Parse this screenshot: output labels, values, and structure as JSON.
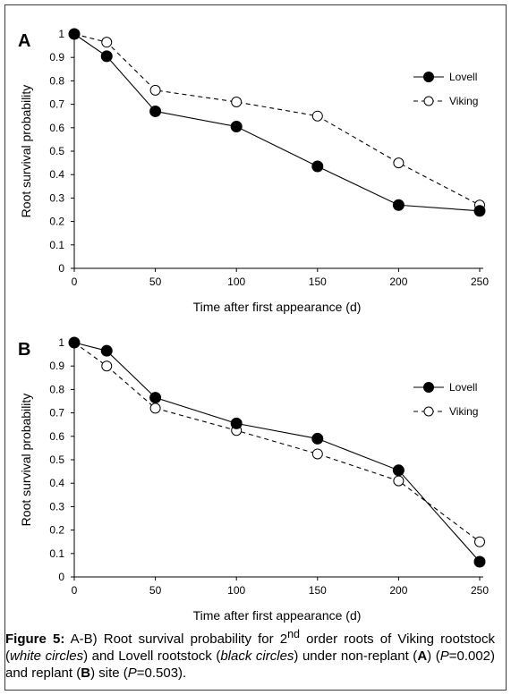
{
  "chart_data": [
    {
      "type": "line",
      "panel_label": "A",
      "xlabel": "Time after first appearance (d)",
      "ylabel": "Root survival probability",
      "xlim": [
        0,
        250
      ],
      "ylim": [
        0,
        1
      ],
      "x_ticks": [
        "0",
        "50",
        "100",
        "150",
        "200",
        "250"
      ],
      "y_ticks": [
        "0",
        "0.1",
        "0.2",
        "0.3",
        "0.4",
        "0.5",
        "0.6",
        "0.7",
        "0.8",
        "0.9",
        "1"
      ],
      "legend_position": "top-right",
      "grid": false,
      "series": [
        {
          "name": "Lovell",
          "marker": "filled-circle",
          "line": "solid",
          "x": [
            0,
            20,
            50,
            100,
            150,
            200,
            250
          ],
          "y": [
            1.0,
            0.905,
            0.67,
            0.605,
            0.435,
            0.27,
            0.245
          ]
        },
        {
          "name": "Viking",
          "marker": "open-circle",
          "line": "dashed",
          "x": [
            0,
            20,
            50,
            100,
            150,
            200,
            250
          ],
          "y": [
            1.0,
            0.965,
            0.76,
            0.71,
            0.65,
            0.45,
            0.27
          ]
        }
      ]
    },
    {
      "type": "line",
      "panel_label": "B",
      "xlabel": "Time after first appearance (d)",
      "ylabel": "Root survival probability",
      "xlim": [
        0,
        250
      ],
      "ylim": [
        0,
        1
      ],
      "x_ticks": [
        "0",
        "50",
        "100",
        "150",
        "200",
        "250"
      ],
      "y_ticks": [
        "0",
        "0.1",
        "0.2",
        "0.3",
        "0.4",
        "0.5",
        "0.6",
        "0.7",
        "0.8",
        "0.9",
        "1"
      ],
      "legend_position": "top-right",
      "grid": false,
      "series": [
        {
          "name": "Lovell",
          "marker": "filled-circle",
          "line": "solid",
          "x": [
            0,
            20,
            50,
            100,
            150,
            200,
            250
          ],
          "y": [
            1.0,
            0.965,
            0.765,
            0.655,
            0.59,
            0.455,
            0.065
          ]
        },
        {
          "name": "Viking",
          "marker": "open-circle",
          "line": "dashed",
          "x": [
            0,
            20,
            50,
            100,
            150,
            200,
            250
          ],
          "y": [
            1.0,
            0.9,
            0.72,
            0.625,
            0.525,
            0.41,
            0.15
          ]
        }
      ]
    }
  ],
  "caption": {
    "figure_label": "Figure 5:",
    "text_1": " A-B) Root survival probability for 2",
    "superscript": "nd",
    "text_2": " order roots of Viking rootstock (",
    "italic_1": "white circles",
    "text_3": ") and Lovell rootstock (",
    "italic_2": "black circles",
    "text_4": ") under non-replant (",
    "bold_1": "A",
    "text_5": ") (",
    "italic_p1": "P",
    "text_6": "=0.002) and replant (",
    "bold_2": "B",
    "text_7": ") site (",
    "italic_p2": "P",
    "text_8": "=0.503)."
  }
}
